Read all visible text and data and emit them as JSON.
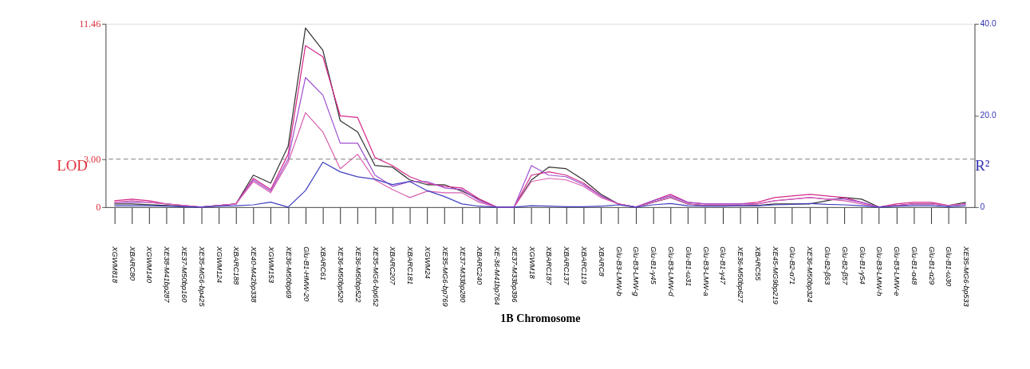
{
  "chart_data": {
    "type": "line",
    "xlabel": "1B Chromosome",
    "ylabel": "LOD",
    "y2label": "R²",
    "categories": [
      "XGWM818",
      "XBARC80",
      "XGWM140",
      "XE38-M41bp287",
      "XE37-M50bp160",
      "XE35-MG6-bp425",
      "XGWM124",
      "XBARC188",
      "XE40-M42bp338",
      "XGWM153",
      "XE36-M50bp69",
      "Glu-B1-HMW-20",
      "XBARC61",
      "XE36-M50bp520",
      "XE36-M50bp522",
      "XE35-MG6-bp652",
      "XBARC207",
      "XBARC181",
      "XGWM24",
      "XE35-MG6-bp769",
      "XE37-M33bp280",
      "XBARC240",
      "XE-36-M41bp764",
      "XE37-M33bp396",
      "XGWM18",
      "XBARC187",
      "XBARC137",
      "XBARC119",
      "XBARC8",
      "Glu-B3-LMW-b",
      "Glu-B3-LMW-g",
      "Glu-B1-γ45",
      "Glu-B3-LMW-d",
      "Glu-B1-ω31",
      "Glu-B3-LMW-a",
      "Glu-B1-γ47",
      "XE36-M50bp627",
      "XBARC55",
      "XE45-MG9bp219",
      "Glu-B2-α71",
      "XE36-M50bp324",
      "Glu-B2-β63",
      "Glu-B2-β57",
      "Glu-B1-γ54",
      "Glu-B3-LMW-h",
      "Glu-B3-LMW-e",
      "Glu-B1-α48",
      "Glu-B1-α29",
      "Glu-B1-ω30",
      "XE35-MG6-bp533"
    ],
    "series": [
      {
        "color": "#333333",
        "values": [
          0.2,
          0.2,
          0.15,
          0.1,
          0.05,
          0,
          0.1,
          0.2,
          2.0,
          1.5,
          3.8,
          11.2,
          9.8,
          5.4,
          4.7,
          2.6,
          2.5,
          1.7,
          1.4,
          1.4,
          1.0,
          0.5,
          0,
          0,
          1.7,
          2.5,
          2.4,
          1.7,
          0.8,
          0.2,
          0,
          0.3,
          0.6,
          0.2,
          0.1,
          0.1,
          0.1,
          0.1,
          0.2,
          0.2,
          0.2,
          0.4,
          0.6,
          0.5,
          0,
          0.1,
          0.2,
          0.2,
          0.1,
          0.3
        ]
      },
      {
        "color": "#d42a8a",
        "values": [
          0.4,
          0.5,
          0.4,
          0.2,
          0.1,
          0,
          0.1,
          0.2,
          1.8,
          1.1,
          3.3,
          10.1,
          9.4,
          5.7,
          5.6,
          3.1,
          2.6,
          1.9,
          1.5,
          1.3,
          1.2,
          0.5,
          0,
          0,
          2.0,
          2.2,
          2.0,
          1.5,
          0.7,
          0.2,
          0,
          0.4,
          0.8,
          0.3,
          0.2,
          0.2,
          0.2,
          0.3,
          0.6,
          0.7,
          0.8,
          0.7,
          0.6,
          0.3,
          0,
          0.2,
          0.3,
          0.3,
          0.1,
          0.2
        ]
      },
      {
        "color": "#a050d0",
        "values": [
          0.3,
          0.3,
          0.3,
          0.2,
          0.1,
          0,
          0.1,
          0.2,
          1.7,
          1.0,
          3.0,
          8.1,
          7.0,
          4.0,
          4.0,
          2.0,
          1.3,
          1.6,
          1.6,
          1.2,
          1.1,
          0.4,
          0,
          0,
          2.6,
          2.0,
          1.9,
          1.4,
          0.7,
          0.2,
          0,
          0.4,
          0.7,
          0.3,
          0.2,
          0.2,
          0.2,
          0.2,
          0.4,
          0.5,
          0.6,
          0.5,
          0.5,
          0.3,
          0,
          0.1,
          0.2,
          0.2,
          0.1,
          0.2
        ]
      },
      {
        "color": "#d860b0",
        "values": [
          0.3,
          0.4,
          0.3,
          0.2,
          0.1,
          0,
          0.1,
          0.2,
          1.6,
          0.9,
          2.8,
          5.9,
          4.7,
          2.4,
          3.3,
          1.7,
          1.1,
          0.6,
          1.0,
          0.9,
          0.9,
          0.3,
          0,
          0,
          1.6,
          1.8,
          1.7,
          1.3,
          0.6,
          0.2,
          0,
          0.3,
          0.6,
          0.2,
          0.1,
          0.1,
          0.1,
          0.2,
          0.4,
          0.5,
          0.6,
          0.5,
          0.4,
          0.2,
          0,
          0.1,
          0.2,
          0.2,
          0.1,
          0.2
        ]
      },
      {
        "color": "#4040c0",
        "axis": "y2",
        "values": [
          0.3,
          0.3,
          0.3,
          0.2,
          0.1,
          0,
          0.2,
          0.3,
          0.5,
          1.1,
          0,
          3.6,
          9.8,
          7.7,
          6.6,
          6.1,
          4.9,
          5.6,
          3.6,
          2.3,
          0.7,
          0.2,
          0,
          0,
          0.3,
          0.2,
          0.1,
          0.1,
          0.2,
          0.5,
          0,
          0.5,
          0.8,
          0.3,
          0.2,
          0.2,
          0.3,
          0.3,
          0.5,
          0.6,
          0.8,
          0.6,
          0.5,
          0.3,
          0,
          0.2,
          0.3,
          0.3,
          0.1,
          0.3
        ]
      }
    ],
    "ylim": [
      0,
      11.46
    ],
    "yticks": [
      0,
      {
        "value": 3,
        "label": "3.00"
      },
      11.46
    ],
    "y2lim": [
      0,
      40
    ],
    "y2ticks": [
      0,
      {
        "value": 20,
        "label": "20.0"
      },
      {
        "value": 40,
        "label": "40.0"
      }
    ],
    "ref_lines": [
      {
        "axis": "y",
        "value": 3,
        "color": "#777777",
        "line_style": "dashed"
      }
    ],
    "line_style": "solid",
    "marker": "none",
    "grid": false
  }
}
